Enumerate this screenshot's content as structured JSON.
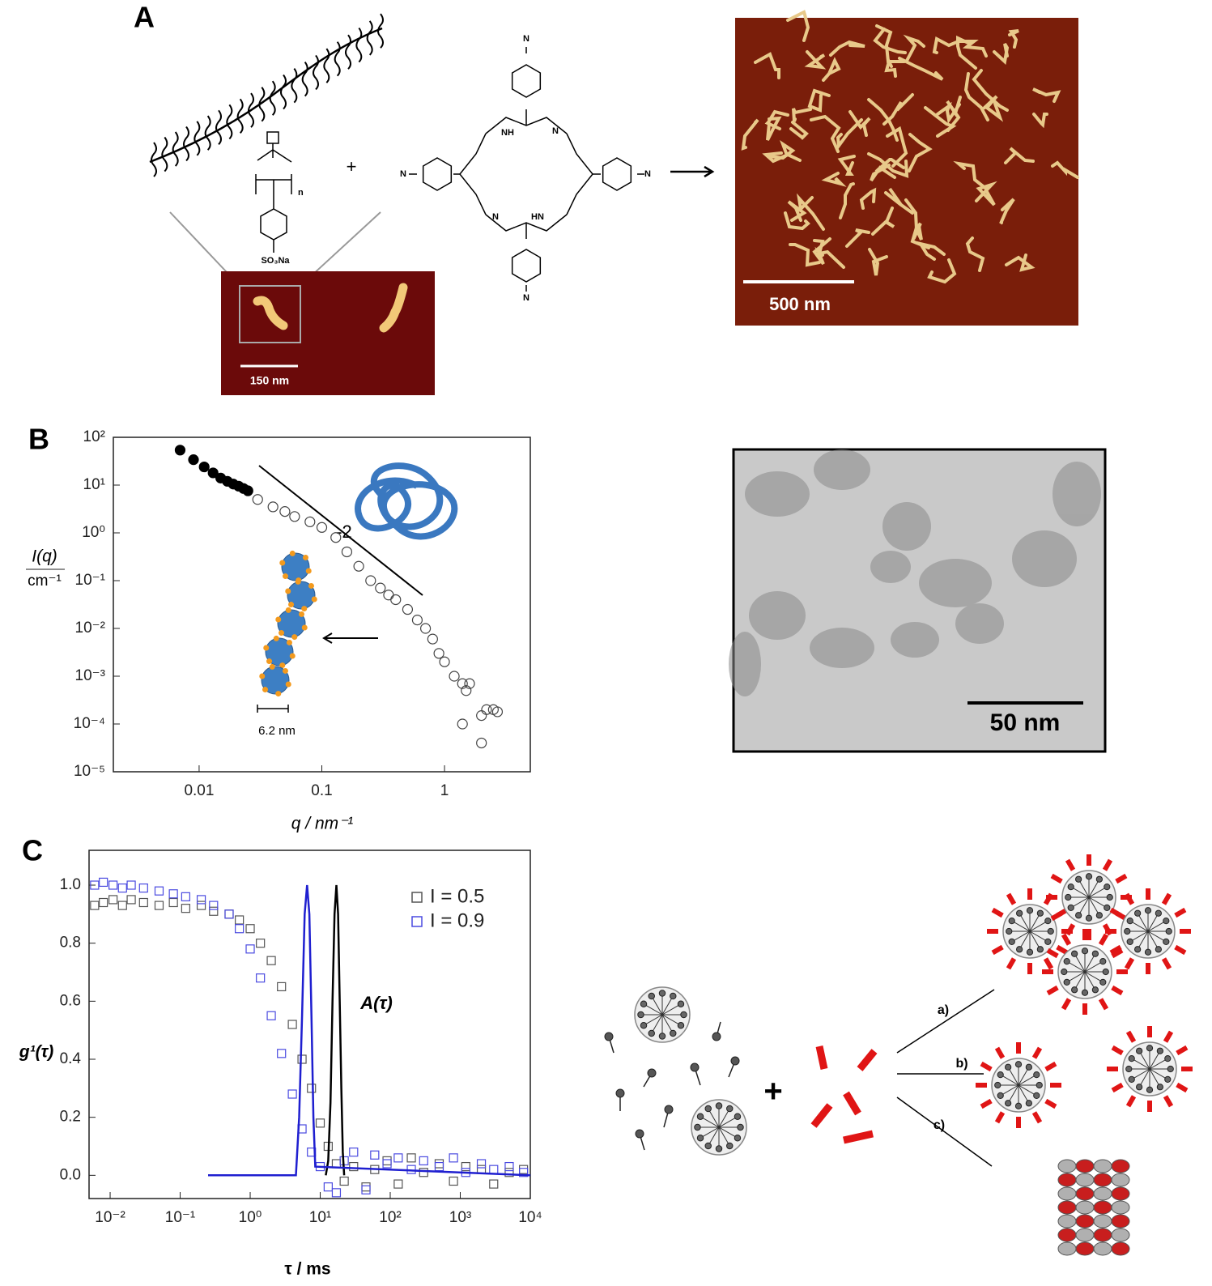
{
  "figure": {
    "panel_labels": [
      "A",
      "B",
      "C"
    ],
    "panel_a": {
      "plus": "+",
      "sulfonate": "SO₃Na",
      "repeat": "n",
      "inner_labels": [
        "NH",
        "N",
        "N",
        "HN"
      ],
      "ammonium": "N",
      "scale_bar_left": "150 nm",
      "scale_bar_right": "500 nm"
    },
    "panel_b": {
      "scale_bar": "50 nm"
    },
    "panel_c": {
      "plus": "+",
      "routes": [
        "a)",
        "b)",
        "c)"
      ]
    }
  },
  "chart_data": [
    {
      "type": "scatter",
      "xlabel": "q / nm⁻¹",
      "ylabel": "I(q)",
      "yunit": "cm⁻¹",
      "xscale": "log",
      "yscale": "log",
      "xlim": [
        0.002,
        5
      ],
      "ylim": [
        1e-05,
        100
      ],
      "xticks": [
        0.01,
        0.1,
        1
      ],
      "yticks": [
        {
          "value": 1e-05,
          "label": "10⁻⁵"
        },
        {
          "value": 0.0001,
          "label": "10⁻⁴"
        },
        {
          "value": 0.001,
          "label": "10⁻³"
        },
        {
          "value": 0.01,
          "label": "10⁻²"
        },
        {
          "value": 0.1,
          "label": "10⁻¹"
        },
        {
          "value": 1,
          "label": "10⁰"
        },
        {
          "value": 10,
          "label": "10¹"
        },
        {
          "value": 100,
          "label": "10²"
        }
      ],
      "annotations": [
        "-2",
        "6.2 nm"
      ],
      "series": [
        {
          "color": "#000000",
          "marker": "circle",
          "filled": true,
          "x": [
            0.007,
            0.009,
            0.011,
            0.013,
            0.015,
            0.017,
            0.019,
            0.021,
            0.023,
            0.025
          ],
          "values": [
            54,
            34,
            24,
            18,
            14,
            12,
            10.5,
            9.5,
            8.5,
            7.6
          ]
        },
        {
          "color": "#444444",
          "marker": "circle",
          "filled": false,
          "x": [
            0.03,
            0.04,
            0.05,
            0.06,
            0.08,
            0.1,
            0.13,
            0.16,
            0.2,
            0.25,
            0.3,
            0.35,
            0.4,
            0.5,
            0.6,
            0.7,
            0.8,
            0.9,
            1.0,
            1.2,
            1.4,
            1.5,
            1.6,
            1.4,
            2.0,
            2.0,
            2.2,
            2.5,
            2.7
          ],
          "values": [
            5,
            3.5,
            2.8,
            2.2,
            1.7,
            1.3,
            0.8,
            0.4,
            0.2,
            0.1,
            0.07,
            0.05,
            0.04,
            0.025,
            0.015,
            0.01,
            0.006,
            0.003,
            0.002,
            0.001,
            0.0007,
            0.0005,
            0.0007,
            0.0001,
            4e-05,
            0.00015,
            0.0002,
            0.0002,
            0.00018
          ]
        }
      ]
    },
    {
      "type": "scatter",
      "xlabel": "τ / ms",
      "ylabel": "g¹(τ)",
      "xscale": "log",
      "xlim": [
        0.005,
        10000
      ],
      "ylim": [
        -0.08,
        1.12
      ],
      "xticks": [
        {
          "value": 0.01,
          "label": "10⁻²"
        },
        {
          "value": 0.1,
          "label": "10⁻¹"
        },
        {
          "value": 1,
          "label": "10⁰"
        },
        {
          "value": 10,
          "label": "10¹"
        },
        {
          "value": 100,
          "label": "10²"
        },
        {
          "value": 1000,
          "label": "10³"
        },
        {
          "value": 10000,
          "label": "10⁴"
        }
      ],
      "yticks": [
        {
          "value": 0,
          "label": "0.0"
        },
        0.2,
        0.4,
        0.6,
        0.8,
        {
          "value": 1,
          "label": "1.0"
        }
      ],
      "legend": "upper right",
      "annotations": [
        "A(τ)"
      ],
      "series": [
        {
          "name": "I = 0.5",
          "color": "#555555",
          "marker": "square",
          "x": [
            0.006,
            0.008,
            0.011,
            0.015,
            0.02,
            0.03,
            0.05,
            0.08,
            0.12,
            0.2,
            0.3,
            0.5,
            0.7,
            1,
            1.4,
            2,
            2.8,
            4,
            5.5,
            7.5,
            10,
            13,
            17,
            22,
            30,
            45,
            60,
            90,
            130,
            200,
            300,
            500,
            800,
            1200,
            2000,
            3000,
            5000,
            8000
          ],
          "values": [
            0.93,
            0.94,
            0.95,
            0.93,
            0.95,
            0.94,
            0.93,
            0.94,
            0.92,
            0.93,
            0.91,
            0.9,
            0.88,
            0.85,
            0.8,
            0.74,
            0.65,
            0.52,
            0.4,
            0.3,
            0.18,
            0.1,
            0.04,
            -0.02,
            0.03,
            -0.04,
            0.02,
            0.05,
            -0.03,
            0.06,
            0.01,
            0.04,
            -0.02,
            0.03,
            0.02,
            -0.03,
            0.01,
            0.02
          ]
        },
        {
          "name": "I = 0.9",
          "color": "#4a4ae0",
          "marker": "square",
          "x": [
            0.006,
            0.008,
            0.011,
            0.015,
            0.02,
            0.03,
            0.05,
            0.08,
            0.12,
            0.2,
            0.3,
            0.5,
            0.7,
            1,
            1.4,
            2,
            2.8,
            4,
            5.5,
            7.5,
            10,
            13,
            17,
            22,
            30,
            45,
            60,
            90,
            130,
            200,
            300,
            500,
            800,
            1200,
            2000,
            3000,
            5000,
            8000
          ],
          "values": [
            1.0,
            1.01,
            1.0,
            0.99,
            1.0,
            0.99,
            0.98,
            0.97,
            0.96,
            0.95,
            0.93,
            0.9,
            0.85,
            0.78,
            0.68,
            0.55,
            0.42,
            0.28,
            0.16,
            0.08,
            0.03,
            -0.04,
            -0.06,
            0.05,
            0.08,
            -0.05,
            0.07,
            0.04,
            0.06,
            0.02,
            0.05,
            0.03,
            0.06,
            0.01,
            0.04,
            0.02,
            0.03,
            0.01
          ]
        },
        {
          "color": "#000000",
          "marker": "line",
          "x": [
            12,
            13,
            14,
            15,
            16,
            17,
            18,
            19,
            20,
            21,
            22
          ],
          "values": [
            0,
            0.05,
            0.25,
            0.6,
            0.9,
            1.0,
            0.9,
            0.6,
            0.3,
            0.08,
            0
          ]
        },
        {
          "color": "#1f1fd0",
          "marker": "line",
          "x": [
            0.25,
            4.5,
            5,
            5.5,
            6,
            6.5,
            7,
            7.5,
            8,
            8.5,
            10000
          ],
          "values": [
            0,
            0,
            0.2,
            0.55,
            0.9,
            1.0,
            0.9,
            0.55,
            0.2,
            0.03,
            0
          ]
        }
      ]
    }
  ]
}
